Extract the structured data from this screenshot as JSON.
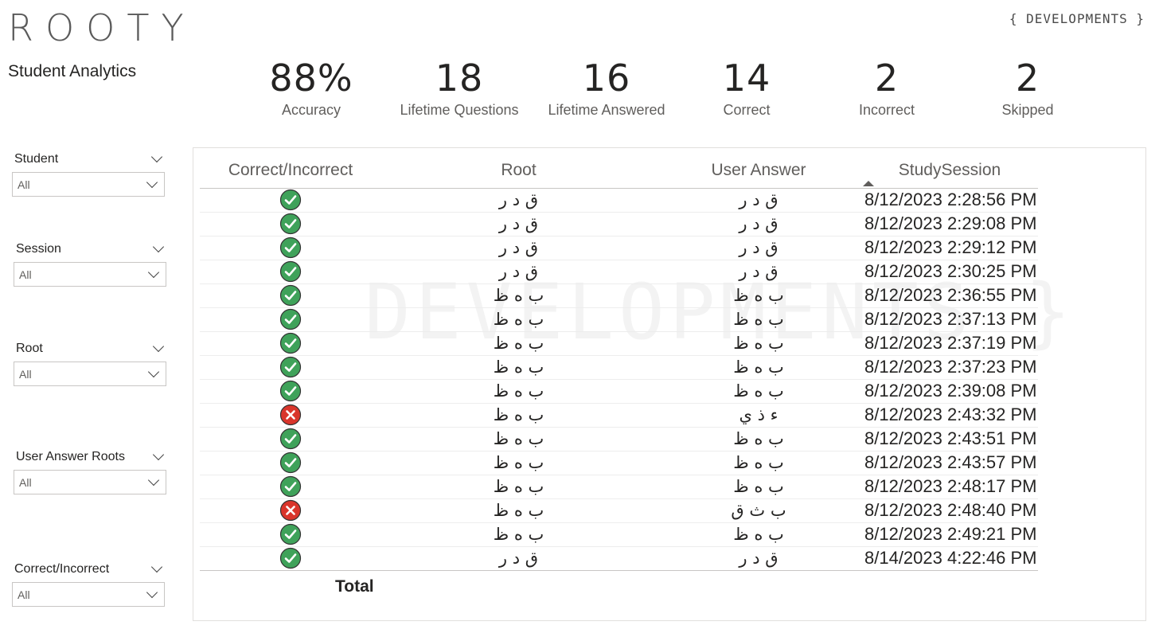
{
  "app": {
    "logo": "ROOTY",
    "subtitle": "Student Analytics",
    "brand_tag": "{ DEVELOPMENTS }",
    "watermark": "DEVELOPMENTS }"
  },
  "kpis": [
    {
      "value": "88%",
      "label": "Accuracy"
    },
    {
      "value": "18",
      "label": "Lifetime Questions"
    },
    {
      "value": "16",
      "label": "Lifetime Answered"
    },
    {
      "value": "14",
      "label": "Correct"
    },
    {
      "value": "2",
      "label": "Incorrect"
    },
    {
      "value": "2",
      "label": "Skipped"
    }
  ],
  "slicers": [
    {
      "title": "Student",
      "value": "All"
    },
    {
      "title": "Session",
      "value": "All"
    },
    {
      "title": "Root",
      "value": "All"
    },
    {
      "title": "User Answer Roots",
      "value": "All"
    },
    {
      "title": "Correct/Incorrect",
      "value": "All"
    }
  ],
  "table": {
    "columns": [
      "Correct/Incorrect",
      "Root",
      "User Answer",
      "StudySession"
    ],
    "sort_column": "StudySession",
    "sort_direction": "ascending",
    "total_label": "Total",
    "rows": [
      {
        "status": "correct",
        "root": "ق د ر",
        "answer": "ق د ر",
        "session": "8/12/2023 2:28:56 PM"
      },
      {
        "status": "correct",
        "root": "ق د ر",
        "answer": "ق د ر",
        "session": "8/12/2023 2:29:08 PM"
      },
      {
        "status": "correct",
        "root": "ق د ر",
        "answer": "ق د ر",
        "session": "8/12/2023 2:29:12 PM"
      },
      {
        "status": "correct",
        "root": "ق د ر",
        "answer": "ق د ر",
        "session": "8/12/2023 2:30:25 PM"
      },
      {
        "status": "correct",
        "root": "ب ه ظ",
        "answer": "ب ه ظ",
        "session": "8/12/2023 2:36:55 PM"
      },
      {
        "status": "correct",
        "root": "ب ه ظ",
        "answer": "ب ه ظ",
        "session": "8/12/2023 2:37:13 PM"
      },
      {
        "status": "correct",
        "root": "ب ه ظ",
        "answer": "ب ه ظ",
        "session": "8/12/2023 2:37:19 PM"
      },
      {
        "status": "correct",
        "root": "ب ه ظ",
        "answer": "ب ه ظ",
        "session": "8/12/2023 2:37:23 PM"
      },
      {
        "status": "correct",
        "root": "ب ه ظ",
        "answer": "ب ه ظ",
        "session": "8/12/2023 2:39:08 PM"
      },
      {
        "status": "incorrect",
        "root": "ب ه ظ",
        "answer": "ء ذ ي",
        "session": "8/12/2023 2:43:32 PM"
      },
      {
        "status": "correct",
        "root": "ب ه ظ",
        "answer": "ب ه ظ",
        "session": "8/12/2023 2:43:51 PM"
      },
      {
        "status": "correct",
        "root": "ب ه ظ",
        "answer": "ب ه ظ",
        "session": "8/12/2023 2:43:57 PM"
      },
      {
        "status": "correct",
        "root": "ب ه ظ",
        "answer": "ب ه ظ",
        "session": "8/12/2023 2:48:17 PM"
      },
      {
        "status": "incorrect",
        "root": "ب ه ظ",
        "answer": "ب ث ق",
        "session": "8/12/2023 2:48:40 PM"
      },
      {
        "status": "correct",
        "root": "ب ه ظ",
        "answer": "ب ه ظ",
        "session": "8/12/2023 2:49:21 PM"
      },
      {
        "status": "correct",
        "root": "ق د ر",
        "answer": "ق د ر",
        "session": "8/14/2023 4:22:46 PM"
      }
    ]
  },
  "colors": {
    "correct": "#3fa25a",
    "incorrect": "#d9352b",
    "text": "#252423",
    "muted": "#605e5c"
  }
}
